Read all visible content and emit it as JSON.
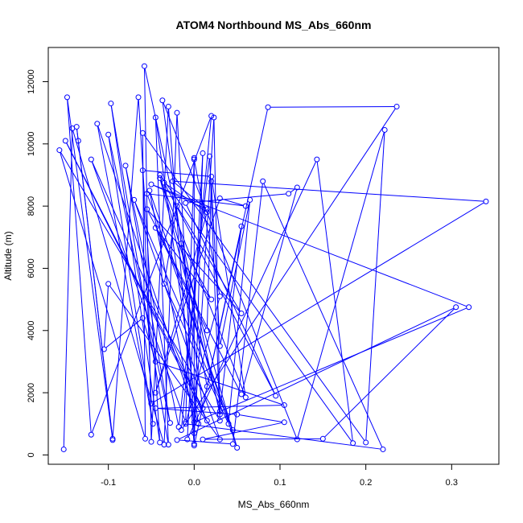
{
  "chart_data": {
    "type": "line",
    "title": "ATOM4 Northbound MS_Abs_660nm",
    "xlabel": "MS_Abs_660nm",
    "ylabel": "Altitude (m)",
    "xlim": [
      -0.17,
      0.355
    ],
    "ylim": [
      -300,
      13100
    ],
    "xticks": [
      -0.1,
      0.0,
      0.1,
      0.2,
      0.3
    ],
    "xtick_labels": [
      "-0.1",
      "0.0",
      "0.1",
      "0.2",
      "0.3"
    ],
    "yticks": [
      0,
      2000,
      4000,
      6000,
      8000,
      10000,
      12000
    ],
    "ytick_labels": [
      "0",
      "2000",
      "4000",
      "6000",
      "8000",
      "10000",
      "12000"
    ],
    "grid": false,
    "legend": "none",
    "series_color": "#0000ff",
    "points": [
      [
        -0.152,
        180
      ],
      [
        -0.142,
        10500
      ],
      [
        -0.035,
        330
      ],
      [
        -0.02,
        11000
      ],
      [
        0.0,
        700
      ],
      [
        0.023,
        10850
      ],
      [
        0.03,
        1300
      ],
      [
        -0.058,
        12500
      ],
      [
        -0.05,
        420
      ],
      [
        -0.03,
        11200
      ],
      [
        0.0,
        300
      ],
      [
        0.086,
        11180
      ],
      [
        0.236,
        11200
      ],
      [
        -0.015,
        800
      ],
      [
        0.02,
        10900
      ],
      [
        -0.12,
        650
      ],
      [
        -0.148,
        11500
      ],
      [
        -0.095,
        480
      ],
      [
        -0.137,
        10550
      ],
      [
        -0.135,
        10100
      ],
      [
        -0.095,
        520
      ],
      [
        -0.065,
        11500
      ],
      [
        -0.04,
        400
      ],
      [
        -0.097,
        11300
      ],
      [
        -0.03,
        330
      ],
      [
        -0.045,
        10850
      ],
      [
        0.005,
        1000
      ],
      [
        -0.113,
        10650
      ],
      [
        -0.048,
        1000
      ],
      [
        -0.1,
        10300
      ],
      [
        -0.028,
        1030
      ],
      [
        -0.08,
        9300
      ],
      [
        -0.018,
        900
      ],
      [
        0.018,
        9600
      ],
      [
        0.03,
        1100
      ],
      [
        -0.157,
        9800
      ],
      [
        -0.057,
        520
      ],
      [
        -0.06,
        10350
      ],
      [
        0.2,
        400
      ],
      [
        0.222,
        10450
      ],
      [
        0.12,
        500
      ],
      [
        -0.037,
        11400
      ],
      [
        0.01,
        1500
      ],
      [
        -0.15,
        10100
      ],
      [
        0.015,
        1100
      ],
      [
        -0.12,
        9500
      ],
      [
        -0.01,
        1050
      ],
      [
        0.0,
        9550
      ],
      [
        0.0,
        350
      ],
      [
        0.01,
        9700
      ],
      [
        -0.008,
        500
      ],
      [
        0.143,
        9500
      ],
      [
        0.185,
        380
      ],
      [
        -0.04,
        9000
      ],
      [
        0.05,
        230
      ],
      [
        -0.052,
        8500
      ],
      [
        0.0,
        1050
      ],
      [
        0.32,
        4750
      ],
      [
        -0.05,
        8700
      ],
      [
        0.015,
        7900
      ],
      [
        -0.025,
        8800
      ],
      [
        0.34,
        8150
      ],
      [
        -0.05,
        1650
      ],
      [
        -0.06,
        9150
      ],
      [
        0.02,
        8950
      ],
      [
        0.06,
        1850
      ],
      [
        -0.04,
        8900
      ],
      [
        0.03,
        1400
      ],
      [
        0.055,
        7350
      ],
      [
        0.015,
        2200
      ],
      [
        -0.015,
        6800
      ],
      [
        0.02,
        5000
      ],
      [
        -0.045,
        7300
      ],
      [
        0.015,
        4000
      ],
      [
        0.02,
        8800
      ],
      [
        0.03,
        3500
      ],
      [
        0.065,
        8200
      ],
      [
        0.04,
        1000
      ],
      [
        -0.035,
        5500
      ],
      [
        -0.02,
        8000
      ],
      [
        0.055,
        4550
      ],
      [
        -0.055,
        7900
      ],
      [
        0.055,
        1950
      ],
      [
        0.12,
        8600
      ],
      [
        0.11,
        8400
      ],
      [
        -0.01,
        8100
      ],
      [
        0.095,
        1900
      ],
      [
        -0.035,
        8750
      ],
      [
        0.015,
        7800
      ],
      [
        -0.045,
        2000
      ],
      [
        0.03,
        8250
      ],
      [
        0.06,
        8000
      ],
      [
        -0.055,
        8400
      ],
      [
        0.045,
        800
      ],
      [
        -0.07,
        8200
      ],
      [
        0.03,
        500
      ],
      [
        -0.1,
        5500
      ],
      [
        -0.105,
        3400
      ],
      [
        -0.06,
        4400
      ],
      [
        -0.045,
        3000
      ],
      [
        0.105,
        1600
      ],
      [
        -0.045,
        1500
      ],
      [
        0.05,
        1300
      ],
      [
        0.105,
        1050
      ],
      [
        0.01,
        500
      ],
      [
        0.15,
        520
      ],
      [
        0.305,
        4750
      ],
      [
        -0.02,
        480
      ],
      [
        0.045,
        350
      ],
      [
        0.08,
        8800
      ],
      [
        0.22,
        180
      ],
      [
        -0.01,
        1000
      ],
      [
        0.03,
        5100
      ],
      [
        0.0,
        9500
      ]
    ]
  }
}
